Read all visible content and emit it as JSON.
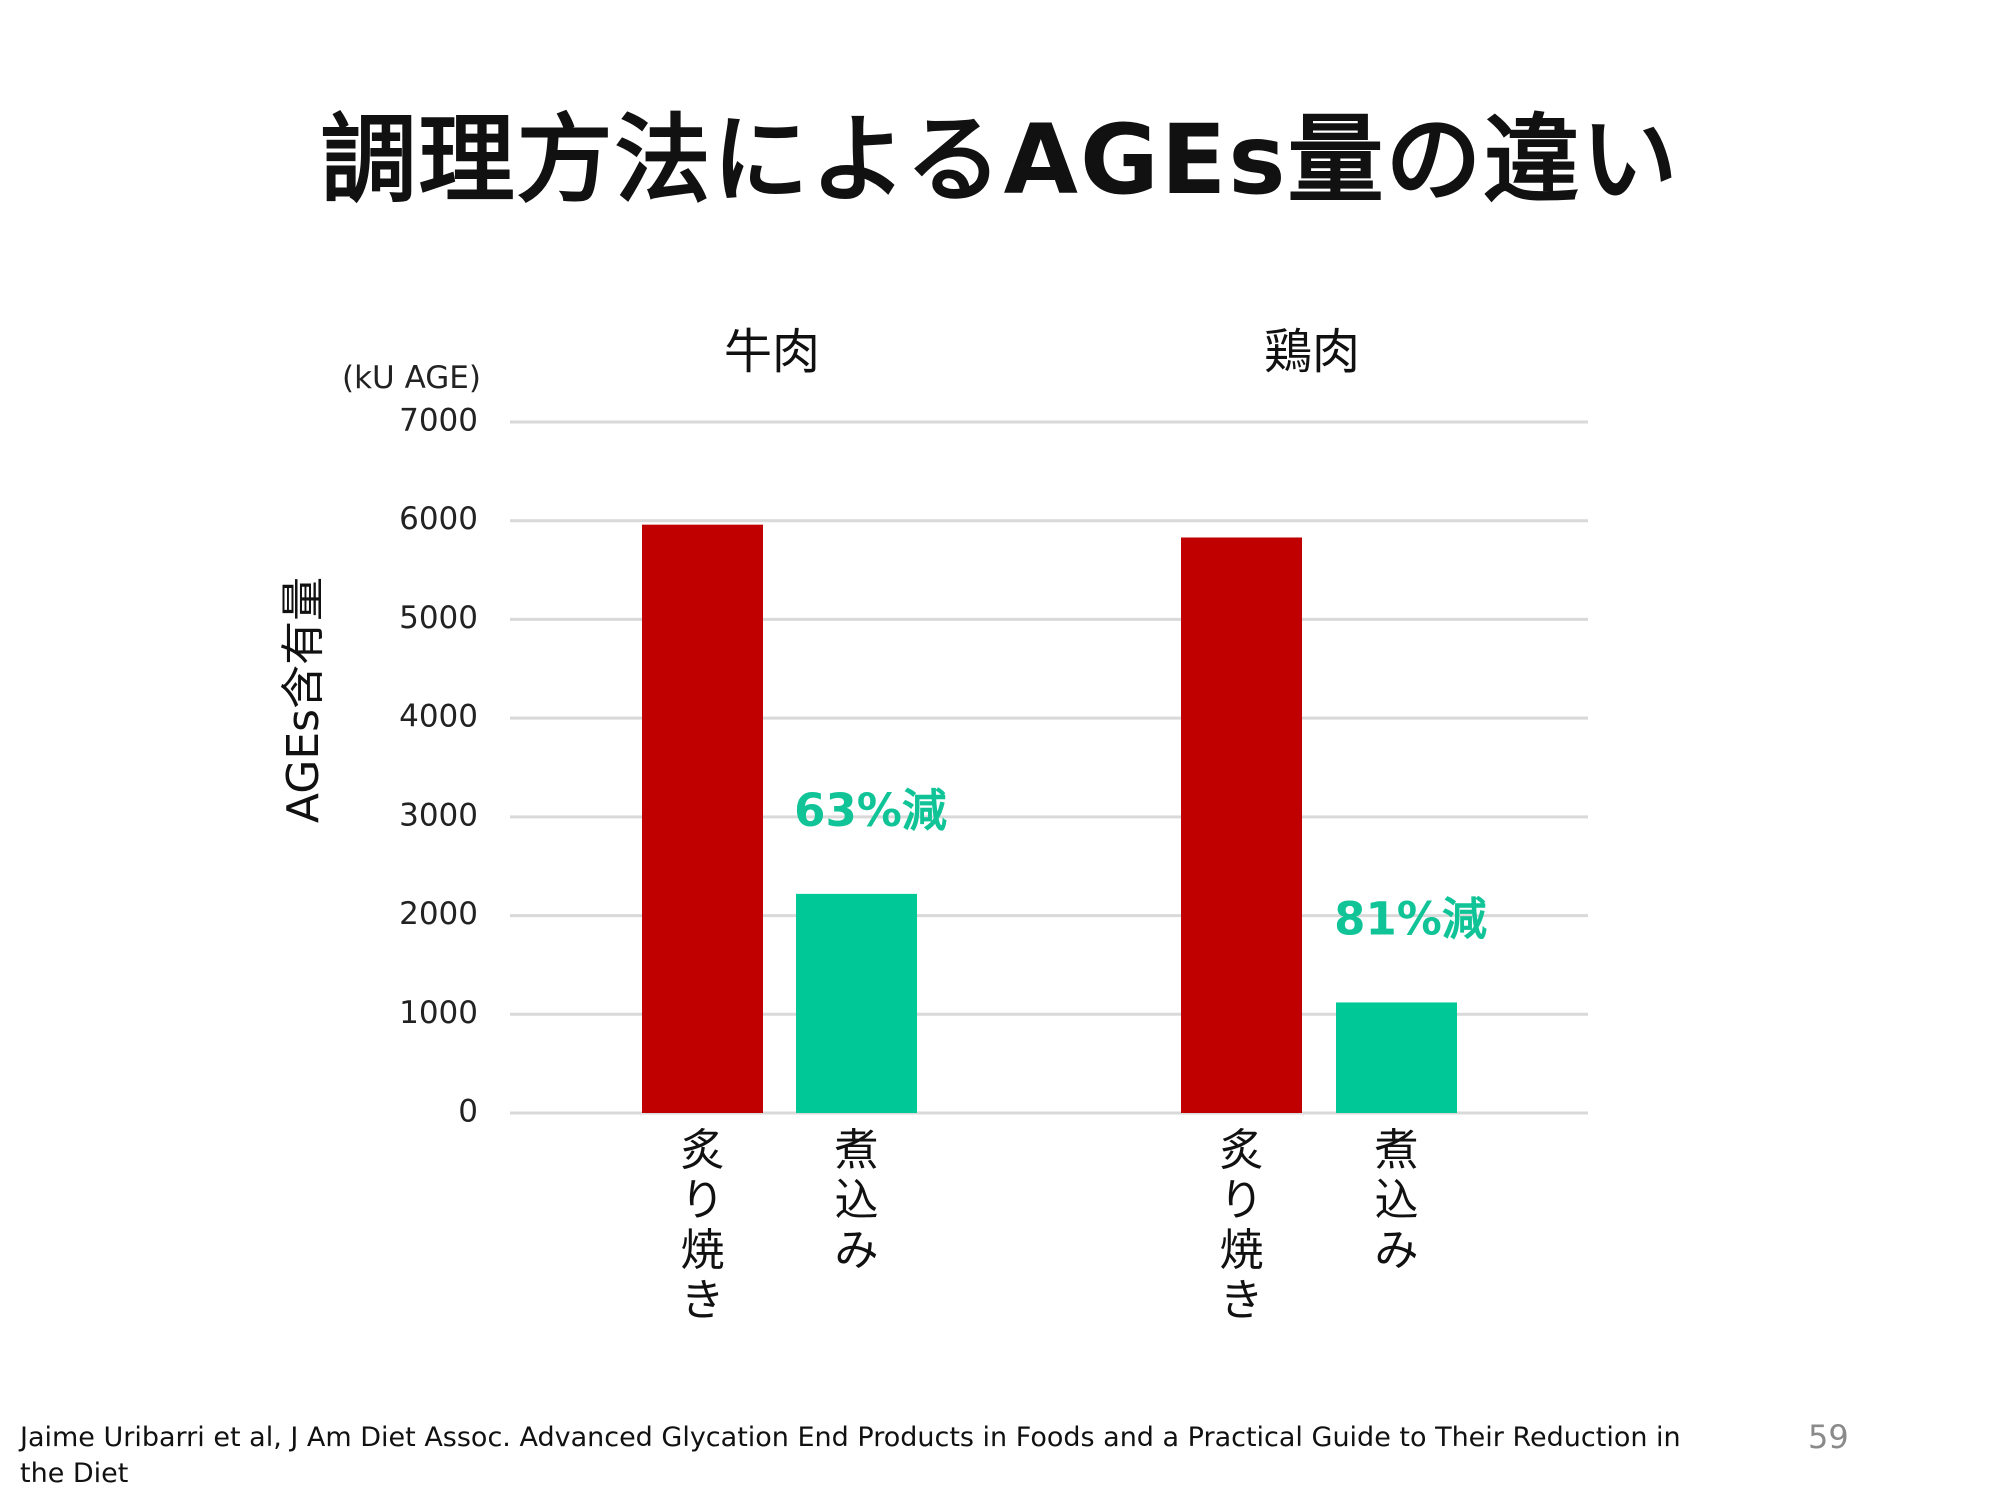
{
  "slide": {
    "title": "調理方法によるAGEs量の違い",
    "citation": "Jaime Uribarri et al, J Am Diet Assoc. Advanced Glycation End Products in Foods and a Practical Guide to Their Reduction in the Diet",
    "page_number": "59"
  },
  "colors": {
    "grilled": "#c00000",
    "simmered": "#00c896",
    "annotation": "#11c497",
    "grid": "#d9d9d9"
  },
  "chart_data": {
    "type": "bar",
    "title": "",
    "ylabel": "AGEs含有量",
    "yunit": "(kU AGE)",
    "ylim": [
      0,
      7000
    ],
    "yticks": [
      0,
      1000,
      2000,
      3000,
      4000,
      5000,
      6000,
      7000
    ],
    "grid": true,
    "groups": [
      {
        "label": "牛肉",
        "bars": [
          {
            "category": "炙り焼き",
            "value": 5960,
            "color": "#c00000"
          },
          {
            "category": "煮込み",
            "value": 2220,
            "color": "#00c896"
          }
        ],
        "annotation": "63%減"
      },
      {
        "label": "鶏肉",
        "bars": [
          {
            "category": "炙り焼き",
            "value": 5830,
            "color": "#c00000"
          },
          {
            "category": "煮込み",
            "value": 1120,
            "color": "#00c896"
          }
        ],
        "annotation": "81%減"
      }
    ]
  }
}
